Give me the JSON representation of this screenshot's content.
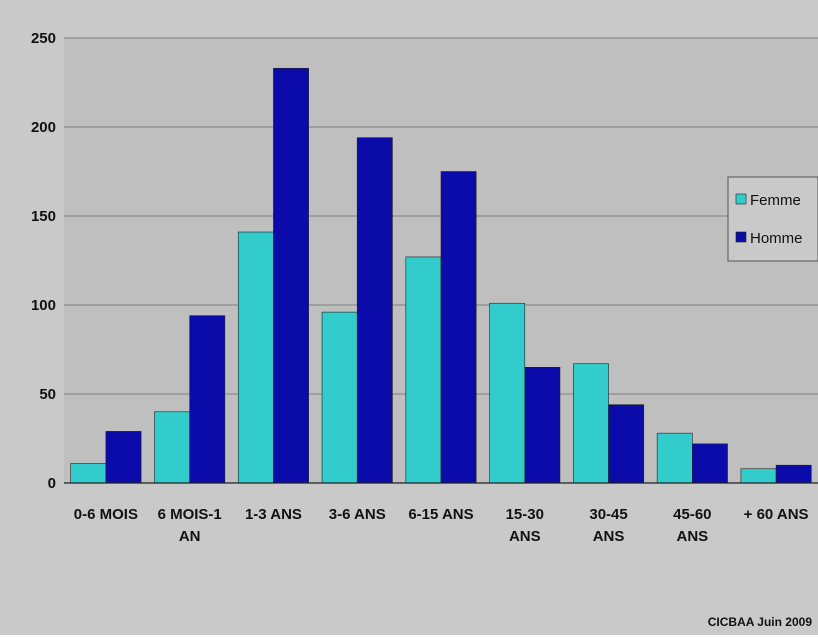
{
  "chart_data": {
    "type": "bar",
    "categories": [
      [
        "0-6 MOIS"
      ],
      [
        "6 MOIS-1",
        "AN"
      ],
      [
        "1-3 ANS"
      ],
      [
        "3-6 ANS"
      ],
      [
        "6-15 ANS"
      ],
      [
        "15-30",
        "ANS"
      ],
      [
        "30-45",
        "ANS"
      ],
      [
        "45-60",
        "ANS"
      ],
      [
        "+ 60 ANS"
      ]
    ],
    "series": [
      {
        "name": "Femme",
        "color": "#33CCCC",
        "values": [
          11,
          40,
          141,
          96,
          127,
          101,
          67,
          28,
          8
        ]
      },
      {
        "name": "Homme",
        "color": "#0B0BAA",
        "values": [
          29,
          94,
          233,
          194,
          175,
          65,
          44,
          22,
          10
        ]
      }
    ],
    "ylim": [
      0,
      250
    ],
    "yticks": [
      0,
      50,
      100,
      150,
      200,
      250
    ],
    "grid": true,
    "legend_position": "right",
    "title": "",
    "xlabel": "",
    "ylabel": "",
    "source_note": "CICBAA Juin 2009",
    "colors": {
      "plot_bg": "#BFBFBF",
      "outer_bg": "#C9C9C9",
      "grid": "#7F7F7F"
    }
  }
}
